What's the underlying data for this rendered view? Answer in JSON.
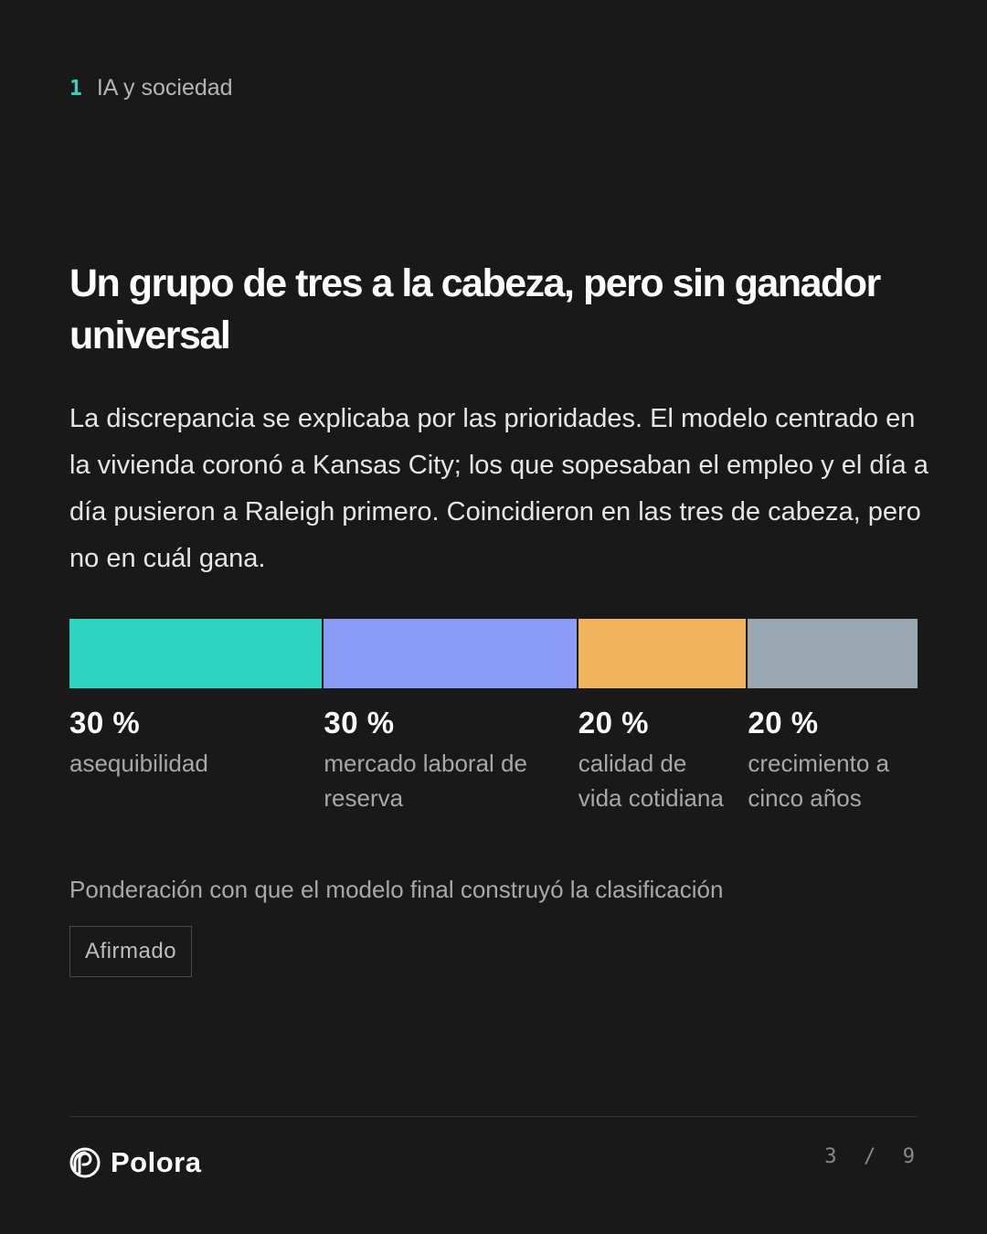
{
  "kicker": {
    "number": "1",
    "label": "IA y sociedad"
  },
  "headline": "Un grupo de tres a la cabeza, pero sin ganador universal",
  "body": "La discrepancia se explicaba por las prioridades. El modelo centrado en la vivienda coronó a Kansas City; los que sopesaban el empleo y el día a día pusieron a Raleigh primero. Coincidieron en las tres de cabeza, pero no en cuál gana.",
  "chart_data": {
    "type": "bar",
    "categories": [
      "asequibilidad",
      "mercado laboral de reserva",
      "calidad de vida cotidiana",
      "crecimiento a cinco años"
    ],
    "values": [
      30,
      30,
      20,
      20
    ],
    "value_labels": [
      "30 %",
      "30 %",
      "20 %",
      "20 %"
    ],
    "colors": [
      "#2dd4bf",
      "#8b9cf4",
      "#f0b45c",
      "#9aa7b0"
    ],
    "stacked": true,
    "title": ""
  },
  "caption": "Ponderación con que el modelo final construyó la clasificación",
  "tag": "Afirmado",
  "footer": {
    "brand": "Polora",
    "page_current": "3",
    "page_total": "9",
    "page_sep": "/"
  },
  "icons": {
    "brand": "polora-logo-icon"
  }
}
